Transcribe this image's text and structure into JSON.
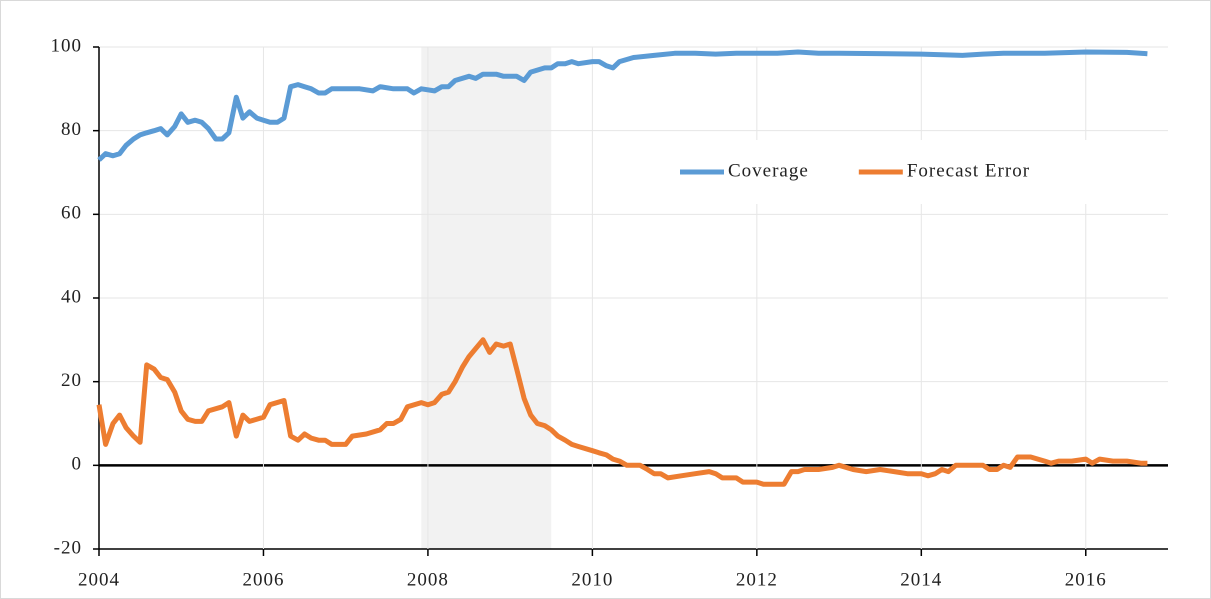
{
  "chart_data": {
    "type": "line",
    "xlim": [
      2004,
      2017
    ],
    "xticks": [
      2004,
      2006,
      2008,
      2010,
      2012,
      2014,
      2016
    ],
    "ylim": [
      -20,
      100
    ],
    "yticks": [
      -20,
      0,
      20,
      40,
      60,
      80,
      100
    ],
    "grid": true,
    "legend": "upper right",
    "shaded_xrange": [
      2007.92,
      2009.5
    ],
    "series": [
      {
        "name": "Coverage",
        "color": "#5b9bd5",
        "x": [
          2004.0,
          2004.08,
          2004.17,
          2004.25,
          2004.33,
          2004.42,
          2004.5,
          2004.58,
          2004.67,
          2004.75,
          2004.83,
          2004.92,
          2005.0,
          2005.08,
          2005.17,
          2005.25,
          2005.33,
          2005.42,
          2005.5,
          2005.58,
          2005.67,
          2005.75,
          2005.83,
          2005.92,
          2006.0,
          2006.08,
          2006.17,
          2006.25,
          2006.33,
          2006.42,
          2006.5,
          2006.58,
          2006.67,
          2006.75,
          2006.83,
          2007.0,
          2007.17,
          2007.33,
          2007.42,
          2007.58,
          2007.75,
          2007.83,
          2007.92,
          2008.08,
          2008.17,
          2008.25,
          2008.33,
          2008.5,
          2008.58,
          2008.67,
          2008.83,
          2008.92,
          2009.08,
          2009.17,
          2009.25,
          2009.42,
          2009.5,
          2009.58,
          2009.67,
          2009.75,
          2009.83,
          2010.0,
          2010.08,
          2010.17,
          2010.25,
          2010.33,
          2010.5,
          2010.75,
          2011.0,
          2011.25,
          2011.5,
          2011.75,
          2012.0,
          2012.25,
          2012.5,
          2012.75,
          2013.0,
          2014.0,
          2014.5,
          2014.75,
          2015.0,
          2015.5,
          2016.0,
          2016.5,
          2016.75
        ],
        "values": [
          73,
          74.5,
          74,
          74.5,
          76.5,
          78,
          79,
          79.5,
          80,
          80.5,
          79,
          81,
          84,
          82,
          82.5,
          82,
          80.5,
          78,
          78,
          79.5,
          88,
          83,
          84.5,
          83,
          82.5,
          82,
          82,
          83,
          90.5,
          91,
          90.5,
          90,
          89,
          89,
          90,
          90,
          90,
          89.5,
          90.5,
          90,
          90,
          89,
          90,
          89.5,
          90.5,
          90.5,
          92,
          93,
          92.5,
          93.5,
          93.5,
          93,
          93,
          92,
          94,
          95,
          95,
          96,
          96,
          96.5,
          96,
          96.5,
          96.5,
          95.5,
          95,
          96.5,
          97.5,
          98,
          98.5,
          98.5,
          98.3,
          98.5,
          98.5,
          98.5,
          98.8,
          98.5,
          98.5,
          98.3,
          98,
          98.3,
          98.5,
          98.5,
          98.8,
          98.7,
          98.4
        ]
      },
      {
        "name": "Forecast Error",
        "color": "#ed7d31",
        "x": [
          2004.0,
          2004.08,
          2004.17,
          2004.25,
          2004.33,
          2004.42,
          2004.5,
          2004.58,
          2004.67,
          2004.75,
          2004.83,
          2004.92,
          2005.0,
          2005.08,
          2005.17,
          2005.25,
          2005.33,
          2005.5,
          2005.58,
          2005.67,
          2005.75,
          2005.83,
          2006.0,
          2006.08,
          2006.25,
          2006.33,
          2006.42,
          2006.5,
          2006.58,
          2006.67,
          2006.75,
          2006.83,
          2006.92,
          2007.0,
          2007.08,
          2007.25,
          2007.42,
          2007.5,
          2007.58,
          2007.67,
          2007.75,
          2007.92,
          2008.0,
          2008.08,
          2008.17,
          2008.25,
          2008.33,
          2008.42,
          2008.5,
          2008.67,
          2008.75,
          2008.83,
          2008.92,
          2009.0,
          2009.08,
          2009.17,
          2009.25,
          2009.33,
          2009.42,
          2009.5,
          2009.58,
          2009.67,
          2009.75,
          2009.83,
          2010.0,
          2010.08,
          2010.17,
          2010.25,
          2010.33,
          2010.42,
          2010.58,
          2010.67,
          2010.75,
          2010.83,
          2010.92,
          2011.08,
          2011.25,
          2011.42,
          2011.5,
          2011.58,
          2011.75,
          2011.83,
          2012.0,
          2012.08,
          2012.25,
          2012.33,
          2012.42,
          2012.5,
          2012.58,
          2012.75,
          2012.92,
          2013.0,
          2013.17,
          2013.33,
          2013.5,
          2013.67,
          2013.83,
          2014.0,
          2014.08,
          2014.17,
          2014.25,
          2014.33,
          2014.42,
          2014.58,
          2014.75,
          2014.83,
          2014.92,
          2015.0,
          2015.08,
          2015.17,
          2015.33,
          2015.5,
          2015.58,
          2015.67,
          2015.83,
          2016.0,
          2016.08,
          2016.17,
          2016.33,
          2016.5,
          2016.67,
          2016.75
        ],
        "values": [
          14.5,
          5,
          10,
          12,
          9,
          7,
          5.5,
          24,
          23,
          21,
          20.5,
          17.5,
          13,
          11,
          10.5,
          10.5,
          13,
          14,
          15,
          7,
          12,
          10.5,
          11.5,
          14.5,
          15.5,
          7,
          6,
          7.5,
          6.5,
          6,
          6,
          5,
          5,
          5,
          7,
          7.5,
          8.5,
          10,
          10,
          11,
          14,
          15,
          14.5,
          15,
          17,
          17.5,
          20,
          23.5,
          26,
          30,
          27,
          29,
          28.5,
          29,
          23,
          16,
          12,
          10,
          9.5,
          8.5,
          7,
          6,
          5,
          4.5,
          3.5,
          3,
          2.5,
          1.5,
          1,
          0,
          0,
          -1,
          -2,
          -2,
          -3,
          -2.5,
          -2,
          -1.5,
          -2,
          -3,
          -3,
          -4,
          -4,
          -4.5,
          -4.5,
          -4.5,
          -1.5,
          -1.5,
          -1,
          -1,
          -0.5,
          0,
          -1,
          -1.5,
          -1,
          -1.5,
          -2,
          -2,
          -2.5,
          -2,
          -1,
          -1.5,
          0,
          0,
          0,
          -1,
          -1,
          0,
          -0.5,
          2,
          2,
          1,
          0.5,
          1,
          1,
          1.5,
          0.5,
          1.5,
          1,
          1,
          0.5,
          0.5
        ]
      }
    ]
  }
}
